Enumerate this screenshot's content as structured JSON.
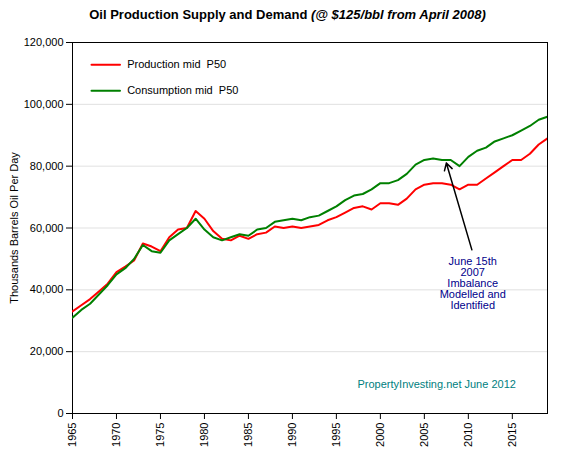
{
  "chart_data": {
    "type": "line",
    "title": "Oil Production Supply and Demand",
    "subtitle": "(@ $125/bbl from April 2008)",
    "y_label": "Thousands Barrels Oil Per Day",
    "x": [
      1965,
      1966,
      1967,
      1968,
      1969,
      1970,
      1971,
      1972,
      1973,
      1974,
      1975,
      1976,
      1977,
      1978,
      1979,
      1980,
      1981,
      1982,
      1983,
      1984,
      1985,
      1986,
      1987,
      1988,
      1989,
      1990,
      1991,
      1992,
      1993,
      1994,
      1995,
      1996,
      1997,
      1998,
      1999,
      2000,
      2001,
      2002,
      2003,
      2004,
      2005,
      2006,
      2007,
      2008,
      2009,
      2010,
      2011,
      2012,
      2013,
      2014,
      2015,
      2016,
      2017,
      2018,
      2019
    ],
    "series": [
      {
        "name": "Production mid  P50",
        "color": "#FF0000",
        "values": [
          33000,
          35000,
          37000,
          39500,
          42000,
          45700,
          47500,
          49500,
          55000,
          54000,
          52500,
          57000,
          59500,
          60000,
          65500,
          63000,
          59000,
          56500,
          56000,
          57500,
          56500,
          58000,
          58500,
          60500,
          60000,
          60500,
          60000,
          60500,
          61000,
          62500,
          63500,
          65000,
          66500,
          67000,
          66000,
          68000,
          68000,
          67500,
          69500,
          72500,
          74000,
          74500,
          74500,
          74000,
          72500,
          74000,
          74000,
          76000,
          78000,
          80000,
          82000,
          82000,
          84000,
          87000,
          89000
        ]
      },
      {
        "name": "Consumption mid  P50",
        "color": "#008000",
        "values": [
          31000,
          33500,
          35500,
          38500,
          41500,
          45000,
          47000,
          50000,
          54500,
          52500,
          52000,
          56000,
          58000,
          60000,
          63000,
          59500,
          57000,
          56000,
          57000,
          58000,
          57500,
          59500,
          60000,
          62000,
          62500,
          63000,
          62500,
          63500,
          64000,
          65500,
          67000,
          69000,
          70500,
          71000,
          72500,
          74500,
          74500,
          75500,
          77500,
          80500,
          82000,
          82500,
          82000,
          82000,
          80000,
          83000,
          85000,
          86000,
          88000,
          89000,
          90000,
          91500,
          93000,
          95000,
          96000
        ]
      }
    ],
    "xlim": [
      1965,
      2019
    ],
    "ylim": [
      0,
      120000
    ],
    "xticks": [
      1965,
      1970,
      1975,
      1980,
      1985,
      1990,
      1995,
      2000,
      2005,
      2010,
      2015
    ],
    "yticks": [
      0,
      {
        "value": 20000,
        "label": "20,000"
      },
      {
        "value": 40000,
        "label": "40,000"
      },
      {
        "value": 60000,
        "label": "60,000"
      },
      {
        "value": 80000,
        "label": "80,000"
      },
      {
        "value": 100000,
        "label": "100,000"
      },
      {
        "value": 120000,
        "label": "120,000"
      }
    ],
    "grid": true,
    "legend": "upper left",
    "annotations": [
      {
        "text": "June 15th\n2007\nImbalance\nModelled and\nIdentified",
        "x": 2010.5,
        "y": 52000,
        "xy": [
          2007.5,
          81000
        ],
        "color": "#00008B"
      },
      {
        "text": "PropertyInvesting.net June 2012",
        "color": "#008080"
      }
    ]
  }
}
